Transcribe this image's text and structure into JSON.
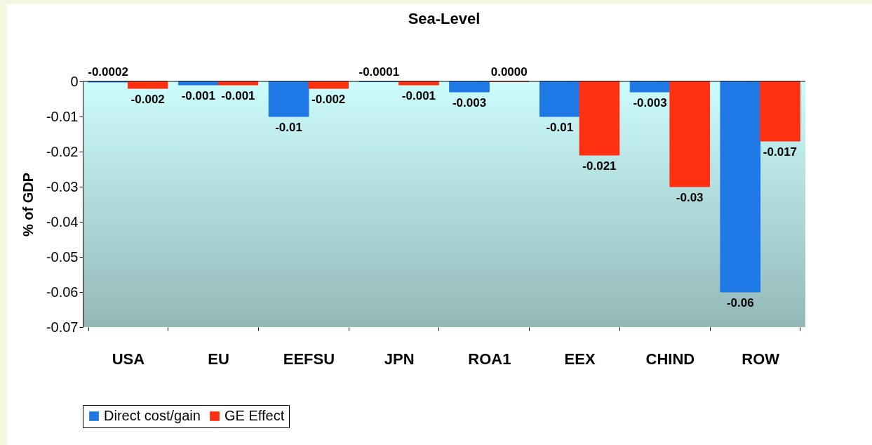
{
  "chart_data": {
    "type": "bar",
    "title": "Sea-Level",
    "ylabel": "% of GDP",
    "categories": [
      "USA",
      "EU",
      "EEFSU",
      "JPN",
      "ROA1",
      "EEX",
      "CHIND",
      "ROW"
    ],
    "series": [
      {
        "name": "Direct cost/gain",
        "color": "#1e78e6",
        "values": [
          -0.0002,
          -0.001,
          -0.01,
          -0.0001,
          -0.003,
          -0.01,
          -0.003,
          -0.06
        ],
        "value_labels": [
          "-0.0002",
          "-0.001",
          "-0.01",
          "-0.0001",
          "-0.003",
          "-0.01",
          "-0.003",
          "-0.06"
        ]
      },
      {
        "name": "GE Effect",
        "color": "#ff3010",
        "values": [
          -0.002,
          -0.001,
          -0.002,
          -0.001,
          0.0,
          -0.021,
          -0.03,
          -0.017
        ],
        "value_labels": [
          "-0.002",
          "-0.001",
          "-0.002",
          "-0.001",
          "0.0000",
          "-0.021",
          "-0.03",
          "-0.017"
        ]
      }
    ],
    "ylim": [
      -0.07,
      0
    ],
    "yticks": [
      0,
      -0.01,
      -0.02,
      -0.03,
      -0.04,
      -0.05,
      -0.06,
      -0.07
    ],
    "legend": "bottom"
  }
}
